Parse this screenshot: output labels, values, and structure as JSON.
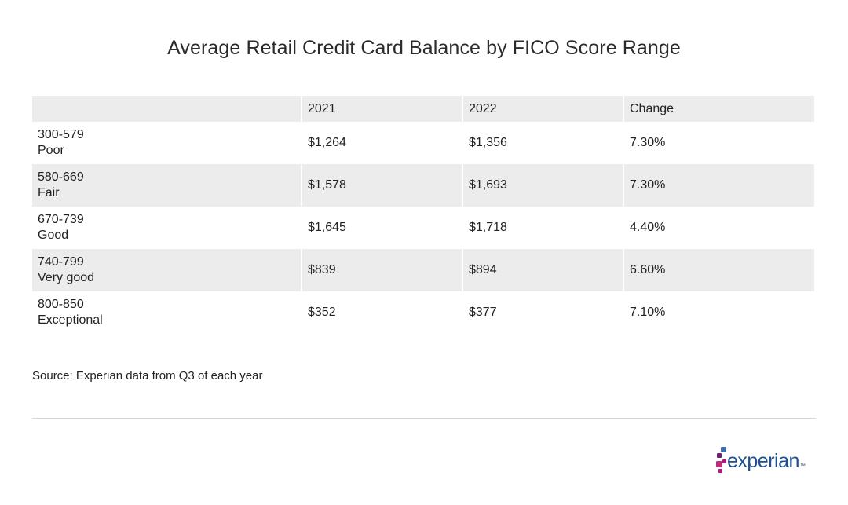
{
  "chart_data": {
    "type": "table",
    "title": "Average Retail Credit Card Balance by FICO Score Range",
    "columns": [
      "",
      "2021",
      "2022",
      "Change"
    ],
    "rows": [
      {
        "range": "300-579",
        "label": "Poor",
        "values": [
          "$1,264",
          "$1,356",
          "7.30%"
        ]
      },
      {
        "range": "580-669",
        "label": "Fair",
        "values": [
          "$1,578",
          "$1,693",
          "7.30%"
        ]
      },
      {
        "range": "670-739",
        "label": "Good",
        "values": [
          "$1,645",
          "$1,718",
          "4.40%"
        ]
      },
      {
        "range": "740-799",
        "label": "Very good",
        "values": [
          "$839",
          "$894",
          "6.60%"
        ]
      },
      {
        "range": "800-850",
        "label": "Exceptional",
        "values": [
          "$352",
          "$377",
          "7.10%"
        ]
      }
    ],
    "source": "Source: Experian data from Q3 of each year"
  },
  "brand": {
    "name": "experian",
    "tm": "™",
    "colors": {
      "word": "#1d4f91",
      "dot_blue": "#1d4f91",
      "dot_purple": "#6d2077",
      "dot_magenta": "#af1685",
      "dot_pink": "#ba2f7d",
      "dot_light_blue": "#426da9"
    }
  },
  "colors": {
    "row_stripe": "#ececec",
    "divider": "#d6d6d6",
    "text": "#222222"
  }
}
